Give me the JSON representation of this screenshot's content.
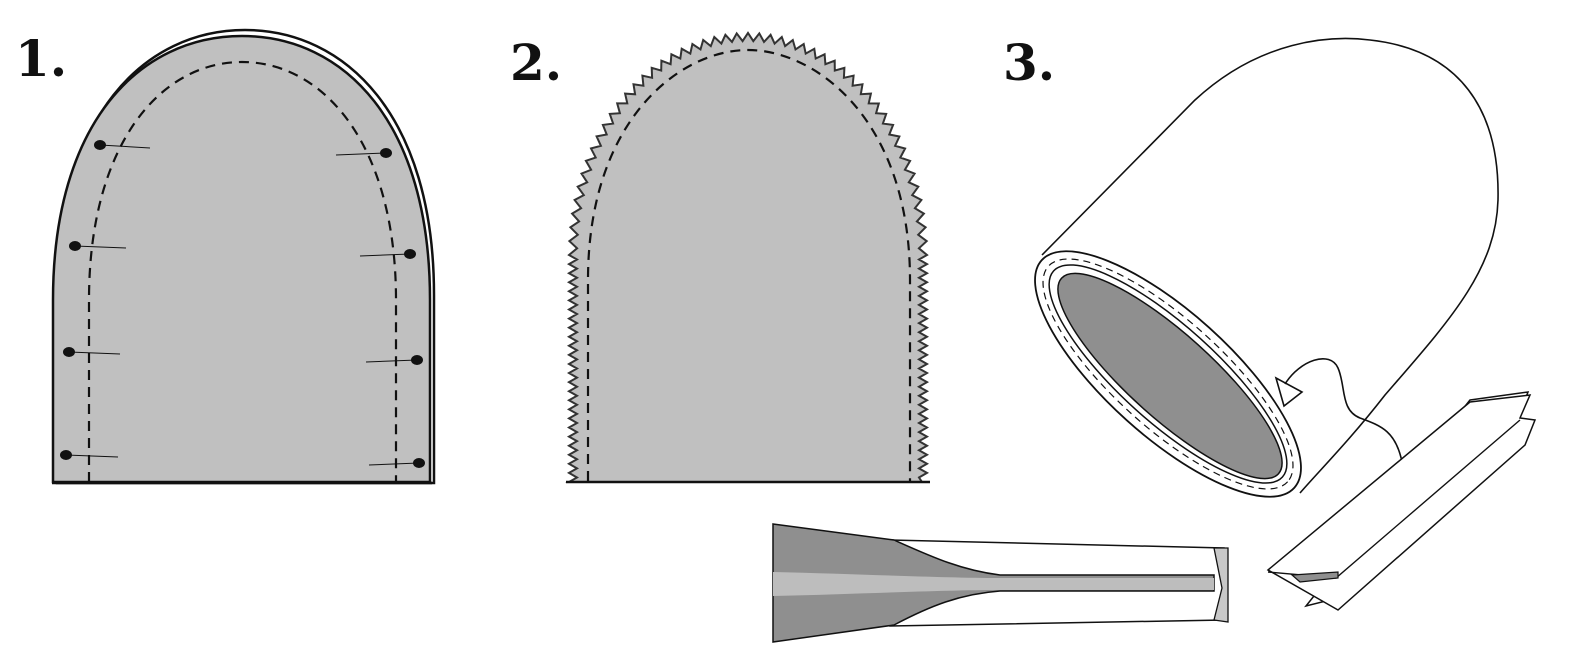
{
  "steps": [
    {
      "number": "1."
    },
    {
      "number": "2."
    },
    {
      "number": "3."
    }
  ],
  "colors": {
    "fabric": "#c0c0c0",
    "fabric_inside": "#8f8f8f",
    "outline": "#111111",
    "pin_head": "#111111",
    "background": "#ffffff"
  },
  "pin_count": 8
}
